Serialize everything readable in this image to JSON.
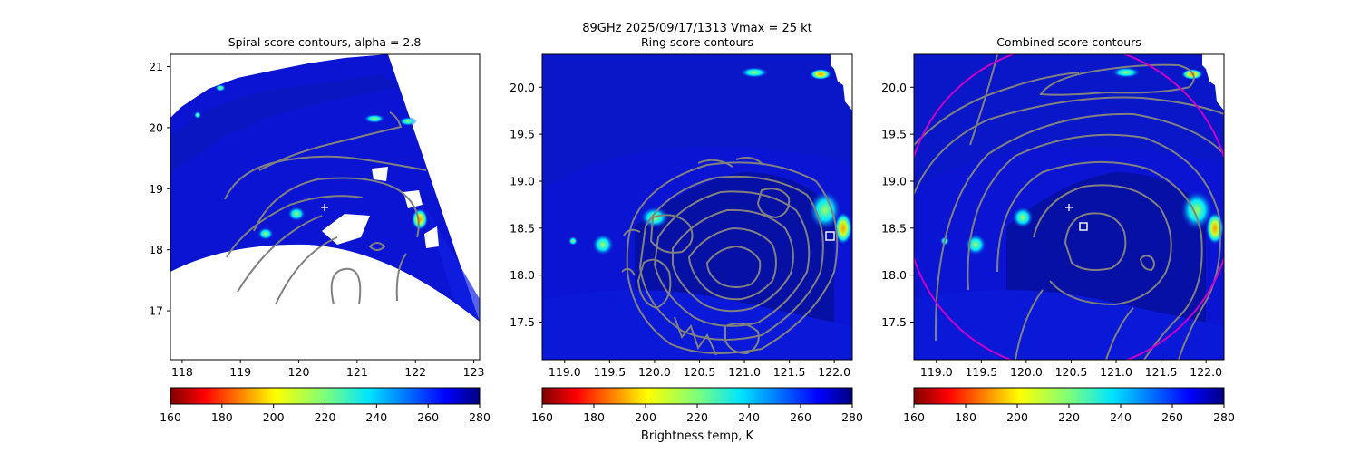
{
  "figure": {
    "suptitle_line1": "89GHz  2025/09/17/1313    Vmax = 25 kt",
    "colorbar_label": "Brightness temp, K"
  },
  "colors": {
    "contour": "#808080",
    "circle": "#c800c8",
    "marker": "#ffffff",
    "swath_background": "#0a14d2"
  },
  "colormap": "jet_r",
  "chart_data": [
    {
      "type": "heatmap",
      "title": "Spiral score contours, alpha =  2.8",
      "xlabel": "",
      "ylabel": "",
      "xlim": [
        117.8,
        123.1
      ],
      "ylim": [
        16.2,
        21.2
      ],
      "xticks": [
        118,
        119,
        120,
        121,
        122,
        123
      ],
      "yticks": [
        17,
        18,
        19,
        20,
        21
      ],
      "grid": false,
      "first_guess_center": [
        120.45,
        18.7
      ],
      "colorbar": {
        "min": 160,
        "max": 280,
        "ticks": [
          160,
          180,
          200,
          220,
          240,
          260,
          280
        ]
      }
    },
    {
      "type": "heatmap",
      "title": "Ring score contours",
      "xlabel": "",
      "ylabel": "",
      "xlim": [
        118.75,
        122.2
      ],
      "ylim": [
        17.1,
        20.35
      ],
      "xticks": [
        119.0,
        119.5,
        120.0,
        120.5,
        121.0,
        121.5,
        122.0
      ],
      "yticks": [
        17.5,
        18.0,
        18.5,
        19.0,
        19.5,
        20.0
      ],
      "grid": false,
      "ring_center": [
        121.9,
        18.4
      ],
      "colorbar": {
        "min": 160,
        "max": 280,
        "ticks": [
          160,
          180,
          200,
          220,
          240,
          260,
          280
        ]
      }
    },
    {
      "type": "heatmap",
      "title": "Combined score contours",
      "xlabel": "",
      "ylabel": "",
      "xlim": [
        118.75,
        122.2
      ],
      "ylim": [
        17.1,
        20.35
      ],
      "xticks": [
        119.0,
        119.5,
        120.0,
        120.5,
        121.0,
        121.5,
        122.0
      ],
      "yticks": [
        17.5,
        18.0,
        18.5,
        19.0,
        19.5,
        20.0
      ],
      "grid": false,
      "first_guess_center": [
        120.45,
        18.7
      ],
      "combined_center": [
        120.6,
        18.5
      ],
      "colorbar": {
        "min": 160,
        "max": 280,
        "ticks": [
          160,
          180,
          200,
          220,
          240,
          260,
          280
        ]
      }
    }
  ]
}
